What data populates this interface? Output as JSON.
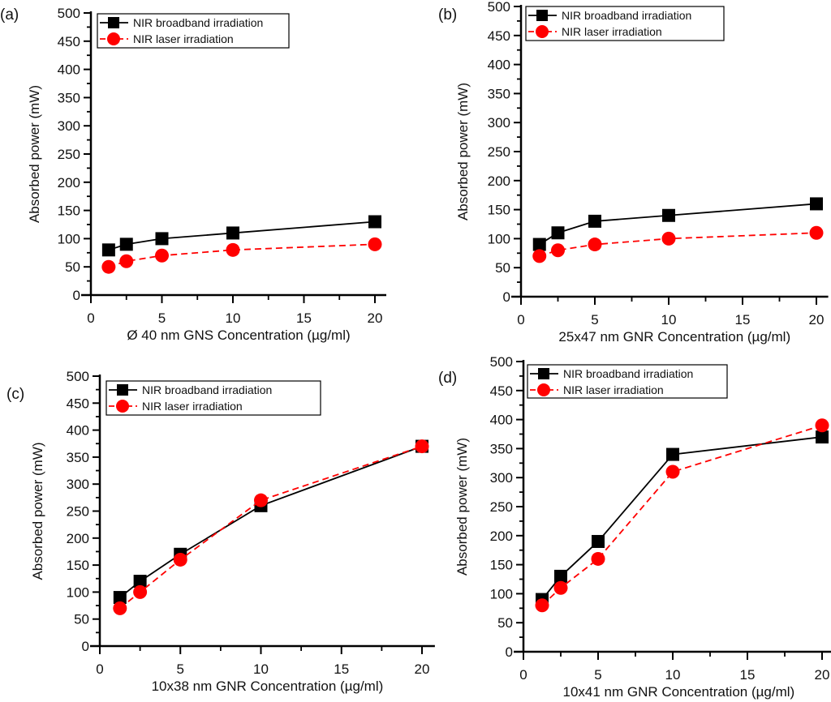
{
  "chart_data": [
    {
      "type": "line",
      "panel_label": "(a)",
      "xlabel": "Ø 40 nm GNS Concentration (µg/ml)",
      "ylabel": "Absorbed power (mW)",
      "xlim": [
        0,
        20.8
      ],
      "ylim": [
        0,
        500
      ],
      "x_ticks": [
        0,
        5,
        10,
        15,
        20
      ],
      "y_ticks": [
        0,
        50,
        100,
        150,
        200,
        250,
        300,
        350,
        400,
        450,
        500
      ],
      "x": [
        1.25,
        2.5,
        5,
        10,
        20
      ],
      "legend_position": "top-left",
      "series": [
        {
          "name": "NIR broadband irradiation",
          "values": [
            80,
            90,
            100,
            110,
            130
          ],
          "color": "#000000",
          "marker": "square",
          "line": "solid"
        },
        {
          "name": "NIR laser irradiation",
          "values": [
            50,
            60,
            70,
            80,
            90
          ],
          "color": "#ff0000",
          "marker": "circle",
          "line": "dashed"
        }
      ]
    },
    {
      "type": "line",
      "panel_label": "(b)",
      "xlabel": "25x47 nm GNR Concentration (µg/ml)",
      "ylabel": "Absorbed power (mW)",
      "xlim": [
        0,
        20.8
      ],
      "ylim": [
        0,
        500
      ],
      "x_ticks": [
        0,
        5,
        10,
        15,
        20
      ],
      "y_ticks": [
        0,
        50,
        100,
        150,
        200,
        250,
        300,
        350,
        400,
        450,
        500
      ],
      "x": [
        1.25,
        2.5,
        5,
        10,
        20
      ],
      "legend_position": "top-left",
      "series": [
        {
          "name": "NIR broadband irradiation",
          "values": [
            90,
            110,
            130,
            140,
            160
          ],
          "color": "#000000",
          "marker": "square",
          "line": "solid"
        },
        {
          "name": "NIR laser irradiation",
          "values": [
            70,
            80,
            90,
            100,
            110
          ],
          "color": "#ff0000",
          "marker": "circle",
          "line": "dashed"
        }
      ]
    },
    {
      "type": "line",
      "panel_label": "(c)",
      "xlabel": "10x38 nm GNR Concentration (µg/ml)",
      "ylabel": "Absorbed power (mW)",
      "xlim": [
        0,
        20.8
      ],
      "ylim": [
        0,
        500
      ],
      "x_ticks": [
        0,
        5,
        10,
        15,
        20
      ],
      "y_ticks": [
        0,
        50,
        100,
        150,
        200,
        250,
        300,
        350,
        400,
        450,
        500
      ],
      "x": [
        1.25,
        2.5,
        5,
        10,
        20
      ],
      "legend_position": "top-left",
      "series": [
        {
          "name": "NIR broadband irradiation",
          "values": [
            90,
            120,
            170,
            260,
            370
          ],
          "color": "#000000",
          "marker": "square",
          "line": "solid"
        },
        {
          "name": "NIR laser irradiation",
          "values": [
            70,
            100,
            160,
            270,
            370
          ],
          "color": "#ff0000",
          "marker": "circle",
          "line": "dashed"
        }
      ]
    },
    {
      "type": "line",
      "panel_label": "(d)",
      "xlabel": "10x41 nm GNR Concentration (µg/ml)",
      "ylabel": "Absorbed power (mW)",
      "xlim": [
        0,
        20.8
      ],
      "ylim": [
        0,
        500
      ],
      "x_ticks": [
        0,
        5,
        10,
        15,
        20
      ],
      "y_ticks": [
        0,
        50,
        100,
        150,
        200,
        250,
        300,
        350,
        400,
        450,
        500
      ],
      "x": [
        1.25,
        2.5,
        5,
        10,
        20
      ],
      "legend_position": "top-left",
      "series": [
        {
          "name": "NIR broadband irradiation",
          "values": [
            90,
            130,
            190,
            340,
            370
          ],
          "color": "#000000",
          "marker": "square",
          "line": "solid"
        },
        {
          "name": "NIR laser irradiation",
          "values": [
            80,
            110,
            160,
            310,
            390
          ],
          "color": "#ff0000",
          "marker": "circle",
          "line": "dashed"
        }
      ]
    }
  ]
}
